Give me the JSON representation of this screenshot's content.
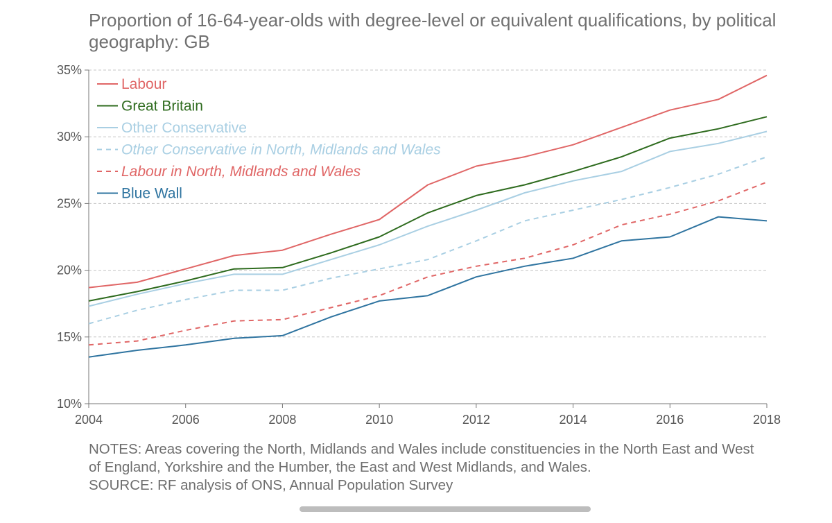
{
  "title": "Proportion of 16-64-year-olds with degree-level or equivalent qualifications, by political geography: GB",
  "notes": {
    "line1": "NOTES: Areas covering the North, Midlands and Wales include constituencies in the North East and West",
    "line2": "of England, Yorkshire and the Humber, the East and West Midlands, and Wales.",
    "source": "SOURCE: RF analysis of ONS, Annual Population Survey"
  },
  "chart_data": {
    "type": "line",
    "title": "Proportion of 16-64-year-olds with degree-level or equivalent qualifications, by political geography: GB",
    "xlabel": "",
    "ylabel": "",
    "x": [
      2004,
      2005,
      2006,
      2007,
      2008,
      2009,
      2010,
      2011,
      2012,
      2013,
      2014,
      2015,
      2016,
      2017,
      2018
    ],
    "xticks": [
      2004,
      2006,
      2008,
      2010,
      2012,
      2014,
      2016,
      2018
    ],
    "xtick_labels": [
      "2004",
      "2006",
      "2008",
      "2010",
      "2012",
      "2014",
      "2016",
      "2018"
    ],
    "ylim": [
      10,
      35
    ],
    "yticks": [
      10,
      15,
      20,
      25,
      30,
      35
    ],
    "ytick_labels": [
      "10%",
      "15%",
      "20%",
      "25%",
      "30%",
      "35%"
    ],
    "grid": "horizontal dashed",
    "legend_position": "top-left",
    "series": [
      {
        "name": "Labour",
        "color": "#e06666",
        "dash": false,
        "values": [
          18.7,
          19.1,
          20.1,
          21.1,
          21.5,
          22.7,
          23.8,
          26.4,
          27.8,
          28.5,
          29.4,
          30.7,
          32.0,
          32.8,
          34.6
        ]
      },
      {
        "name": "Great Britain",
        "color": "#2e6b1e",
        "dash": false,
        "values": [
          17.7,
          18.4,
          19.2,
          20.1,
          20.2,
          21.3,
          22.5,
          24.3,
          25.6,
          26.4,
          27.4,
          28.5,
          29.9,
          30.6,
          31.5
        ]
      },
      {
        "name": "Other Conservative",
        "color": "#a9cfe3",
        "dash": false,
        "values": [
          17.3,
          18.2,
          19.0,
          19.7,
          19.7,
          20.8,
          21.9,
          23.3,
          24.5,
          25.8,
          26.7,
          27.4,
          28.9,
          29.5,
          30.4
        ]
      },
      {
        "name": "Other Conservative in North, Midlands and Wales",
        "color": "#a9cfe3",
        "dash": true,
        "values": [
          16.0,
          17.0,
          17.8,
          18.5,
          18.5,
          19.4,
          20.1,
          20.8,
          22.2,
          23.7,
          24.5,
          25.3,
          26.2,
          27.2,
          28.5
        ]
      },
      {
        "name": "Labour in North, Midlands and Wales",
        "color": "#e06666",
        "dash": true,
        "values": [
          14.4,
          14.7,
          15.5,
          16.2,
          16.3,
          17.2,
          18.1,
          19.5,
          20.3,
          20.9,
          21.9,
          23.4,
          24.2,
          25.2,
          26.6
        ]
      },
      {
        "name": "Blue Wall",
        "color": "#2f74a0",
        "dash": false,
        "values": [
          13.5,
          14.0,
          14.4,
          14.9,
          15.1,
          16.5,
          17.7,
          18.1,
          19.5,
          20.3,
          20.9,
          22.2,
          22.5,
          24.0,
          23.7
        ]
      }
    ]
  }
}
